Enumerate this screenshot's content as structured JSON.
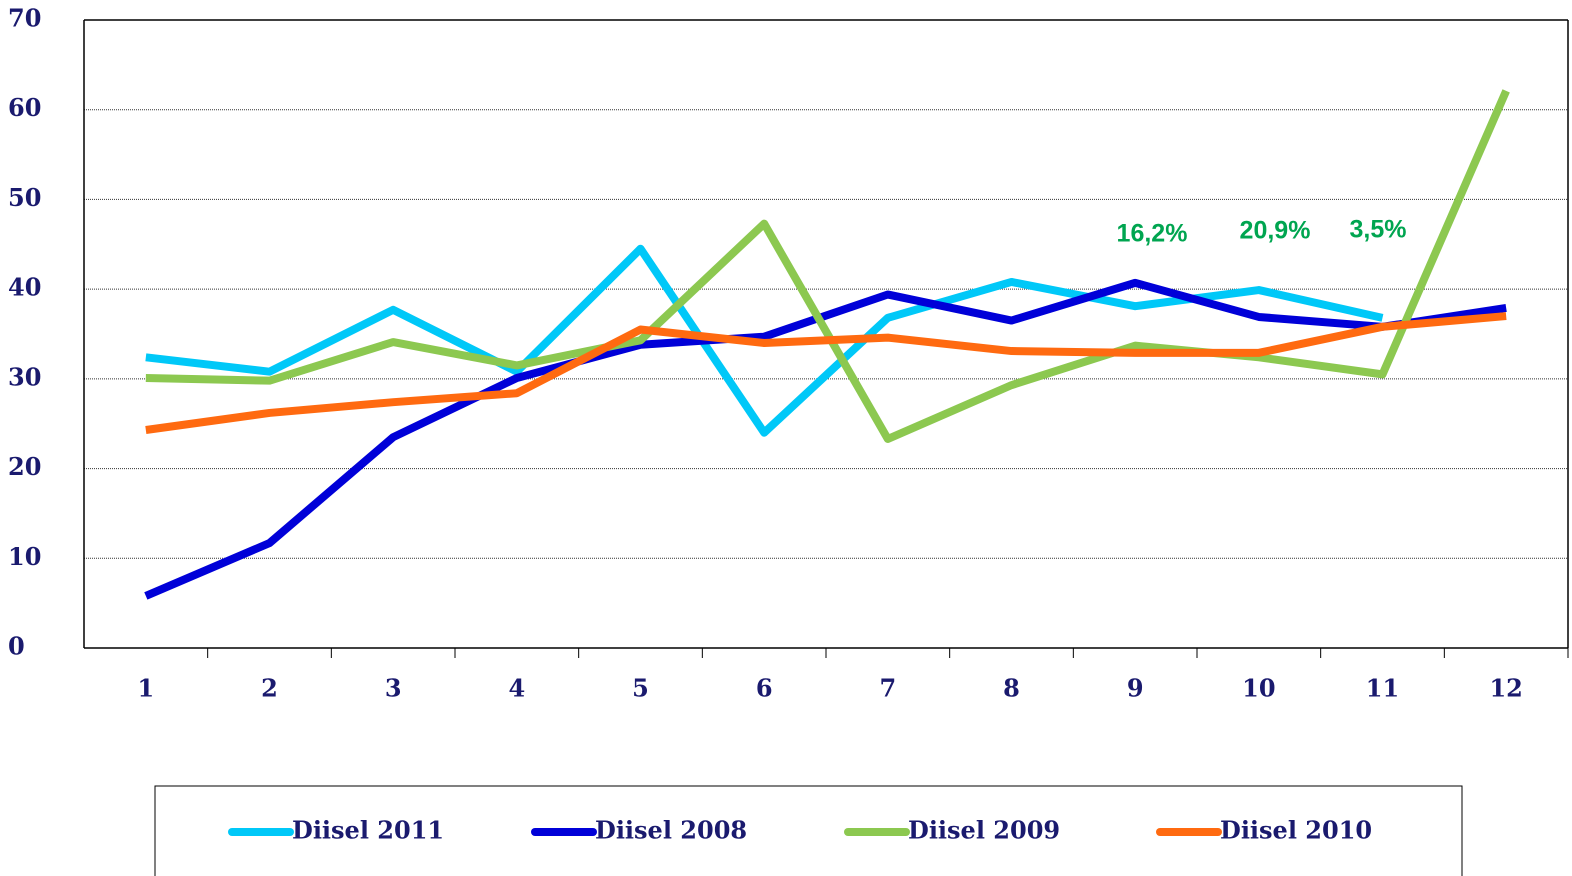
{
  "chart_data": {
    "type": "line",
    "categories": [
      "1",
      "2",
      "3",
      "4",
      "5",
      "6",
      "7",
      "8",
      "9",
      "10",
      "11",
      "12"
    ],
    "series": [
      {
        "name": "Diisel 2011",
        "color": "#00c8f8",
        "values": [
          32.4,
          30.8,
          37.7,
          30.8,
          44.5,
          24.0,
          36.8,
          40.8,
          38.1,
          39.9,
          36.8,
          null
        ]
      },
      {
        "name": "Diisel 2008",
        "color": "#0000d8",
        "values": [
          5.8,
          11.7,
          23.5,
          30.1,
          33.8,
          34.7,
          39.4,
          36.5,
          40.7,
          36.9,
          35.8,
          37.9
        ]
      },
      {
        "name": "Diisel 2009",
        "color": "#8cc850",
        "values": [
          30.1,
          29.8,
          34.1,
          31.5,
          34.3,
          47.3,
          23.3,
          29.3,
          33.7,
          32.4,
          30.5,
          62.1
        ]
      },
      {
        "name": "Diisel 2010",
        "color": "#ff6a10",
        "values": [
          24.3,
          26.2,
          27.4,
          28.4,
          35.5,
          34.0,
          34.6,
          33.1,
          32.9,
          32.9,
          35.8,
          37.0
        ]
      }
    ],
    "annotations": [
      "16,2%",
      "20,9%",
      "3,5%"
    ],
    "annotation_color": "#00a550",
    "ylim": [
      0,
      70
    ],
    "yticks": [
      0,
      10,
      20,
      30,
      40,
      50,
      60,
      70
    ],
    "grid": true
  }
}
